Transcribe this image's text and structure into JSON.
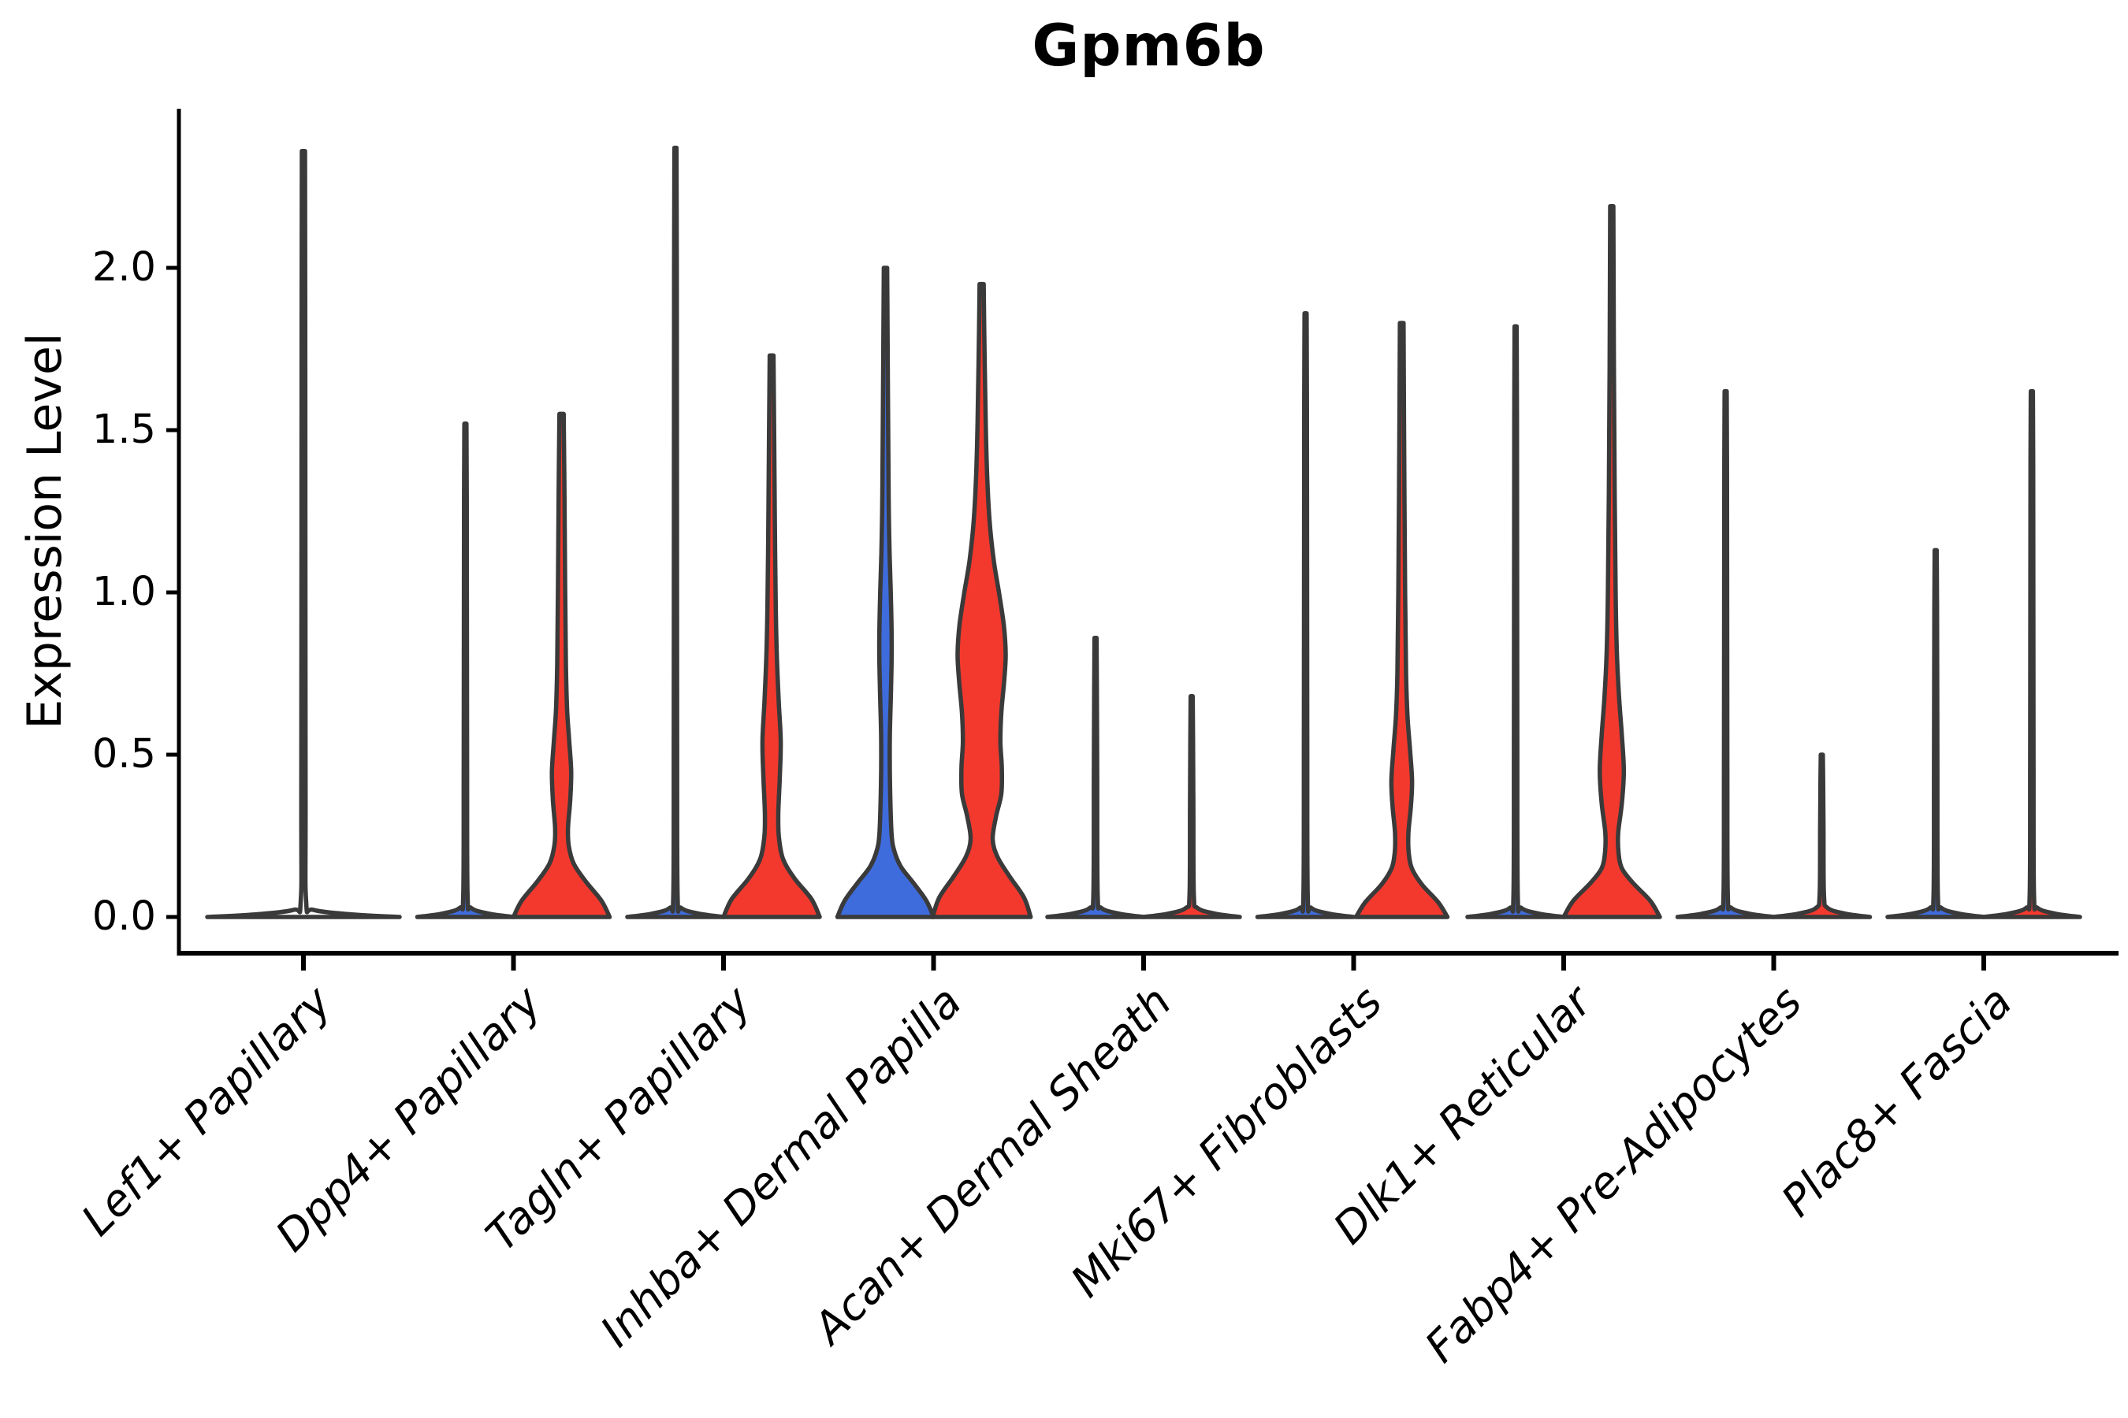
{
  "chart": {
    "title": "Gpm6b",
    "ylabel": "Expression Level"
  },
  "style": {
    "background": "#ffffff",
    "axis_color": "#000000",
    "violin_outline": "#3a3a3a",
    "red_fill": "#f3392e",
    "blue_fill": "#3f6cdc",
    "text_color": "#000000"
  },
  "chart_data": {
    "type": "violin",
    "title": "Gpm6b",
    "xlabel": "",
    "ylabel": "Expression Level",
    "ylim": [
      0,
      2.5
    ],
    "grid": false,
    "legend": "none",
    "yticks": [
      {
        "value": 0.0,
        "label": "0.0"
      },
      {
        "value": 0.5,
        "label": "0.5"
      },
      {
        "value": 1.0,
        "label": "1.0"
      },
      {
        "value": 1.5,
        "label": "1.5"
      },
      {
        "value": 2.0,
        "label": "2.0"
      }
    ],
    "categories": [
      "Lef1+ Papillary",
      "Dpp4+ Papillary",
      "Tagln+ Papillary",
      "Inhba+ Dermal Papilla",
      "Acan+ Dermal Sheath",
      "Mki67+ Fibroblasts",
      "Dlk1+ Reticular",
      "Fabp4+ Pre-Adipocytes",
      "Plac8+ Fascia"
    ],
    "violins": [
      {
        "cat_index": 0,
        "category": "Lef1+ Papillary",
        "position": "center",
        "color": "none",
        "max_expression": 2.36,
        "width_units": 2.0,
        "profile": [
          [
            0,
            1
          ],
          [
            0.008,
            0.5
          ],
          [
            0.022,
            0.1
          ],
          [
            0.05,
            0.028
          ],
          [
            0.4,
            0.022
          ],
          [
            1.8,
            0.019
          ],
          [
            2.36,
            0.016
          ]
        ]
      },
      {
        "cat_index": 1,
        "category": "Dpp4+ Papillary",
        "position": "left",
        "color": "#3f6cdc",
        "max_expression": 1.52,
        "width_units": 1.0,
        "profile": [
          [
            0,
            1
          ],
          [
            0.01,
            0.5
          ],
          [
            0.028,
            0.12
          ],
          [
            0.07,
            0.045
          ],
          [
            0.5,
            0.035
          ],
          [
            1.3,
            0.028
          ],
          [
            1.52,
            0.022
          ]
        ]
      },
      {
        "cat_index": 1,
        "category": "Dpp4+ Papillary",
        "position": "right",
        "color": "#f3392e",
        "max_expression": 1.55,
        "width_units": 1.0,
        "profile": [
          [
            0,
            1
          ],
          [
            0.05,
            0.83
          ],
          [
            0.11,
            0.5
          ],
          [
            0.165,
            0.25
          ],
          [
            0.22,
            0.15
          ],
          [
            0.275,
            0.135
          ],
          [
            0.36,
            0.18
          ],
          [
            0.45,
            0.2
          ],
          [
            0.55,
            0.155
          ],
          [
            0.64,
            0.115
          ],
          [
            0.78,
            0.09
          ],
          [
            1.0,
            0.075
          ],
          [
            1.3,
            0.06
          ],
          [
            1.55,
            0.045
          ]
        ]
      },
      {
        "cat_index": 2,
        "category": "Tagln+ Papillary",
        "position": "left",
        "color": "#3f6cdc",
        "max_expression": 2.37,
        "width_units": 1.0,
        "profile": [
          [
            0,
            1
          ],
          [
            0.01,
            0.5
          ],
          [
            0.028,
            0.12
          ],
          [
            0.07,
            0.045
          ],
          [
            0.6,
            0.035
          ],
          [
            2.0,
            0.028
          ],
          [
            2.37,
            0.022
          ]
        ]
      },
      {
        "cat_index": 2,
        "category": "Tagln+ Papillary",
        "position": "right",
        "color": "#f3392e",
        "max_expression": 1.73,
        "width_units": 1.0,
        "profile": [
          [
            0,
            1
          ],
          [
            0.055,
            0.83
          ],
          [
            0.12,
            0.47
          ],
          [
            0.18,
            0.235
          ],
          [
            0.25,
            0.15
          ],
          [
            0.32,
            0.14
          ],
          [
            0.43,
            0.17
          ],
          [
            0.54,
            0.19
          ],
          [
            0.66,
            0.15
          ],
          [
            0.8,
            0.11
          ],
          [
            0.97,
            0.085
          ],
          [
            1.25,
            0.065
          ],
          [
            1.5,
            0.052
          ],
          [
            1.73,
            0.04
          ]
        ]
      },
      {
        "cat_index": 3,
        "category": "Inhba+ Dermal Papilla",
        "position": "left",
        "color": "#3f6cdc",
        "max_expression": 2.0,
        "width_units": 1.0,
        "profile": [
          [
            0,
            1
          ],
          [
            0.05,
            0.85
          ],
          [
            0.105,
            0.58
          ],
          [
            0.155,
            0.32
          ],
          [
            0.205,
            0.18
          ],
          [
            0.26,
            0.125
          ],
          [
            0.4,
            0.095
          ],
          [
            0.55,
            0.09
          ],
          [
            0.7,
            0.115
          ],
          [
            0.83,
            0.13
          ],
          [
            0.97,
            0.115
          ],
          [
            1.12,
            0.085
          ],
          [
            1.3,
            0.065
          ],
          [
            1.65,
            0.05
          ],
          [
            2.0,
            0.035
          ]
        ]
      },
      {
        "cat_index": 3,
        "category": "Inhba+ Dermal Papilla",
        "position": "right",
        "color": "#f3392e",
        "max_expression": 1.95,
        "width_units": 1.0,
        "profile": [
          [
            0,
            1.02
          ],
          [
            0.06,
            0.88
          ],
          [
            0.125,
            0.58
          ],
          [
            0.185,
            0.33
          ],
          [
            0.24,
            0.23
          ],
          [
            0.31,
            0.3
          ],
          [
            0.38,
            0.41
          ],
          [
            0.46,
            0.42
          ],
          [
            0.54,
            0.39
          ],
          [
            0.63,
            0.41
          ],
          [
            0.73,
            0.47
          ],
          [
            0.81,
            0.5
          ],
          [
            0.9,
            0.46
          ],
          [
            1.0,
            0.36
          ],
          [
            1.1,
            0.25
          ],
          [
            1.22,
            0.165
          ],
          [
            1.36,
            0.115
          ],
          [
            1.52,
            0.085
          ],
          [
            1.72,
            0.062
          ],
          [
            1.95,
            0.042
          ]
        ]
      },
      {
        "cat_index": 4,
        "category": "Acan+ Dermal Sheath",
        "position": "left",
        "color": "#3f6cdc",
        "max_expression": 0.86,
        "width_units": 1.0,
        "profile": [
          [
            0,
            1
          ],
          [
            0.01,
            0.5
          ],
          [
            0.028,
            0.12
          ],
          [
            0.07,
            0.045
          ],
          [
            0.45,
            0.035
          ],
          [
            0.7,
            0.028
          ],
          [
            0.86,
            0.022
          ]
        ]
      },
      {
        "cat_index": 4,
        "category": "Acan+ Dermal Sheath",
        "position": "right",
        "color": "#f3392e",
        "max_expression": 0.68,
        "width_units": 1.0,
        "profile": [
          [
            0,
            1
          ],
          [
            0.01,
            0.5
          ],
          [
            0.028,
            0.12
          ],
          [
            0.07,
            0.045
          ],
          [
            0.35,
            0.035
          ],
          [
            0.55,
            0.028
          ],
          [
            0.68,
            0.022
          ]
        ]
      },
      {
        "cat_index": 5,
        "category": "Mki67+ Fibroblasts",
        "position": "left",
        "color": "#3f6cdc",
        "max_expression": 1.86,
        "width_units": 1.0,
        "profile": [
          [
            0,
            1
          ],
          [
            0.01,
            0.5
          ],
          [
            0.028,
            0.12
          ],
          [
            0.07,
            0.045
          ],
          [
            0.6,
            0.035
          ],
          [
            1.6,
            0.028
          ],
          [
            1.86,
            0.022
          ]
        ]
      },
      {
        "cat_index": 5,
        "category": "Mki67+ Fibroblasts",
        "position": "right",
        "color": "#f3392e",
        "max_expression": 1.83,
        "width_units": 1.0,
        "profile": [
          [
            0,
            0.95
          ],
          [
            0.045,
            0.76
          ],
          [
            0.1,
            0.42
          ],
          [
            0.15,
            0.21
          ],
          [
            0.2,
            0.145
          ],
          [
            0.26,
            0.14
          ],
          [
            0.34,
            0.19
          ],
          [
            0.42,
            0.215
          ],
          [
            0.52,
            0.17
          ],
          [
            0.62,
            0.12
          ],
          [
            0.75,
            0.09
          ],
          [
            1.0,
            0.07
          ],
          [
            1.4,
            0.052
          ],
          [
            1.83,
            0.038
          ]
        ]
      },
      {
        "cat_index": 6,
        "category": "Dlk1+ Reticular",
        "position": "left",
        "color": "#3f6cdc",
        "max_expression": 1.82,
        "width_units": 1.0,
        "profile": [
          [
            0,
            1
          ],
          [
            0.01,
            0.5
          ],
          [
            0.028,
            0.12
          ],
          [
            0.07,
            0.045
          ],
          [
            0.6,
            0.035
          ],
          [
            1.55,
            0.028
          ],
          [
            1.82,
            0.022
          ]
        ]
      },
      {
        "cat_index": 6,
        "category": "Dlk1+ Reticular",
        "position": "right",
        "color": "#f3392e",
        "max_expression": 2.19,
        "width_units": 1.0,
        "profile": [
          [
            0,
            1
          ],
          [
            0.05,
            0.8
          ],
          [
            0.105,
            0.44
          ],
          [
            0.15,
            0.21
          ],
          [
            0.2,
            0.14
          ],
          [
            0.26,
            0.135
          ],
          [
            0.35,
            0.21
          ],
          [
            0.45,
            0.25
          ],
          [
            0.56,
            0.21
          ],
          [
            0.68,
            0.15
          ],
          [
            0.82,
            0.105
          ],
          [
            1.0,
            0.08
          ],
          [
            1.3,
            0.06
          ],
          [
            1.7,
            0.045
          ],
          [
            2.19,
            0.032
          ]
        ]
      },
      {
        "cat_index": 7,
        "category": "Fabp4+ Pre-Adipocytes",
        "position": "left",
        "color": "#3f6cdc",
        "max_expression": 1.62,
        "width_units": 1.0,
        "profile": [
          [
            0,
            1
          ],
          [
            0.01,
            0.5
          ],
          [
            0.028,
            0.12
          ],
          [
            0.07,
            0.045
          ],
          [
            0.5,
            0.035
          ],
          [
            1.4,
            0.028
          ],
          [
            1.62,
            0.022
          ]
        ]
      },
      {
        "cat_index": 7,
        "category": "Fabp4+ Pre-Adipocytes",
        "position": "right",
        "color": "#f3392e",
        "max_expression": 0.5,
        "width_units": 1.0,
        "profile": [
          [
            0,
            1
          ],
          [
            0.01,
            0.5
          ],
          [
            0.028,
            0.12
          ],
          [
            0.07,
            0.045
          ],
          [
            0.28,
            0.035
          ],
          [
            0.42,
            0.028
          ],
          [
            0.5,
            0.022
          ]
        ]
      },
      {
        "cat_index": 8,
        "category": "Plac8+ Fascia",
        "position": "left",
        "color": "#3f6cdc",
        "max_expression": 1.13,
        "width_units": 1.0,
        "profile": [
          [
            0,
            1
          ],
          [
            0.01,
            0.5
          ],
          [
            0.028,
            0.12
          ],
          [
            0.07,
            0.045
          ],
          [
            0.5,
            0.035
          ],
          [
            0.95,
            0.028
          ],
          [
            1.13,
            0.022
          ]
        ]
      },
      {
        "cat_index": 8,
        "category": "Plac8+ Fascia",
        "position": "right",
        "color": "#f3392e",
        "max_expression": 1.62,
        "width_units": 1.0,
        "profile": [
          [
            0,
            1
          ],
          [
            0.01,
            0.5
          ],
          [
            0.028,
            0.12
          ],
          [
            0.07,
            0.045
          ],
          [
            0.5,
            0.035
          ],
          [
            1.4,
            0.028
          ],
          [
            1.62,
            0.022
          ]
        ]
      }
    ]
  }
}
